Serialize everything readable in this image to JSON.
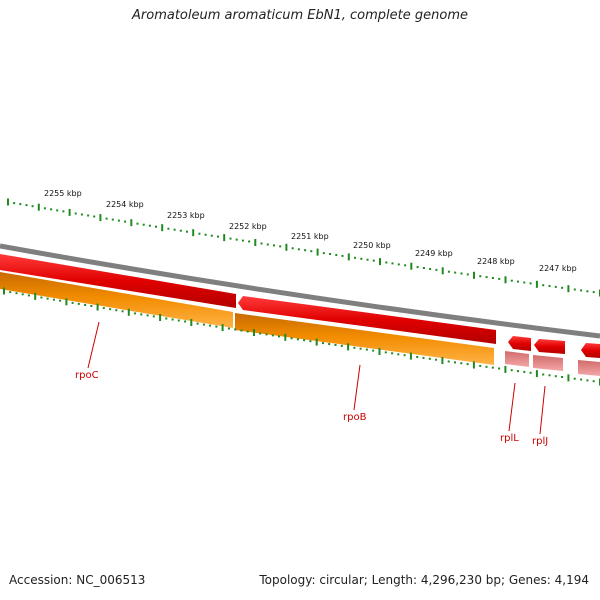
{
  "title": "Aromatoleum aromaticum EbN1, complete genome",
  "footer": {
    "accession": "Accession: NC_006513",
    "summary": "Topology: circular; Length: 4,296,230 bp; Genes: 4,194"
  },
  "colors": {
    "backbone": "#7f7f7f",
    "forward_gene": "#e60000",
    "reverse_gene": "#f28c00",
    "rna_gene": "#e88080",
    "ticks": "#1f8a1f",
    "gene_label": "#cc0000"
  },
  "ruler": {
    "labels": [
      "2255 kbp",
      "2254 kbp",
      "2253 kbp",
      "2252 kbp",
      "2251 kbp",
      "2250 kbp",
      "2249 kbp",
      "2248 kbp",
      "2247 kbp"
    ]
  },
  "genes": [
    {
      "name": "rpoC",
      "strand": "reverse"
    },
    {
      "name": "rpoB",
      "strand": "reverse"
    },
    {
      "name": "rplL",
      "strand": "reverse"
    },
    {
      "name": "rplJ",
      "strand": "reverse"
    }
  ]
}
